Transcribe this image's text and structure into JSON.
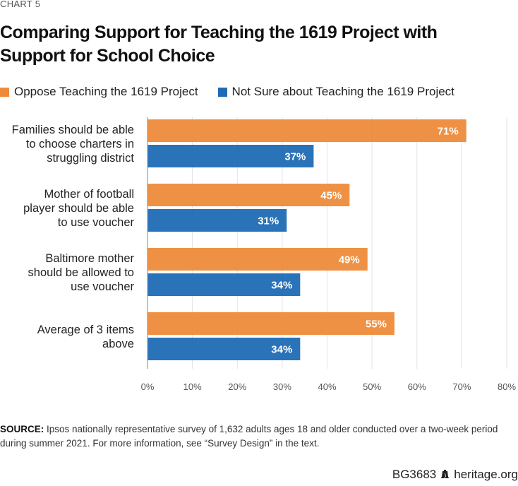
{
  "eyebrow": "CHART 5",
  "title": "Comparing Support for Teaching the 1619 Project with Support for School Choice",
  "colors": {
    "oppose": "#EE8B3A",
    "not_sure": "#1F6CB5",
    "grid": "#e3e3e3",
    "axis": "#999999"
  },
  "legend": [
    {
      "label": "Oppose Teaching the 1619 Project",
      "color": "#EE8B3A"
    },
    {
      "label": "Not Sure about Teaching the 1619 Project",
      "color": "#1F6CB5"
    }
  ],
  "chart_data": {
    "type": "bar",
    "orientation": "horizontal",
    "title": "Comparing Support for Teaching the 1619 Project with Support for School Choice",
    "categories": [
      [
        "Families should be able",
        "to choose charters in",
        "struggling district"
      ],
      [
        "Mother of football",
        "player should be able",
        "to use voucher"
      ],
      [
        "Baltimore mother",
        "should be allowed to",
        "use voucher"
      ],
      [
        "Average of 3 items",
        "above"
      ]
    ],
    "series": [
      {
        "name": "Oppose Teaching the 1619 Project",
        "values": [
          71,
          45,
          49,
          55
        ],
        "labels": [
          "71%",
          "45%",
          "49%",
          "55%"
        ]
      },
      {
        "name": "Not Sure about Teaching the 1619 Project",
        "values": [
          37,
          31,
          34,
          34
        ],
        "labels": [
          "37%",
          "31%",
          "34%",
          "34%"
        ]
      }
    ],
    "xlim": [
      0,
      80
    ],
    "xticks": [
      "0%",
      "10%",
      "20%",
      "30%",
      "40%",
      "50%",
      "60%",
      "70%",
      "80%"
    ],
    "xlabel": "",
    "ylabel": "",
    "grid": true,
    "legend_position": "top-left"
  },
  "source": {
    "label": "SOURCE:",
    "text": " Ipsos nationally representative survey of 1,632 adults ages 18 and older conducted over a two-week period during summer 2021. For more information, see “Survey Design” in the text."
  },
  "footer": {
    "code": "BG3683",
    "icon": "liberty-bell-icon",
    "site": "heritage.org"
  }
}
